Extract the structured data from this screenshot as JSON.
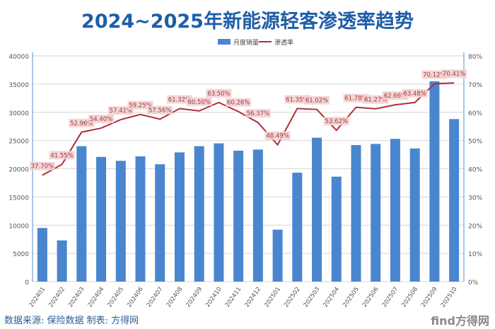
{
  "title": "2024~2025年新能源轻客渗透率趋势",
  "source": "数据来源: 保险数据 制表: 方得网",
  "logo": "find方得网",
  "chart_data": {
    "type": "bar+line",
    "title": "2024~2025年新能源轻客渗透率趋势",
    "categories": [
      "202401",
      "202402",
      "202403",
      "202404",
      "202405",
      "202406",
      "202407",
      "202408",
      "202409",
      "202410",
      "202411",
      "202412",
      "202501",
      "202502",
      "202503",
      "202504",
      "202505",
      "202506",
      "202507",
      "202508",
      "202509",
      "202510"
    ],
    "series": [
      {
        "name": "月度销量",
        "type": "bar",
        "axis": "left",
        "color": "#4a86cf",
        "values": [
          9500,
          7300,
          24000,
          22100,
          21400,
          22200,
          20800,
          22900,
          24000,
          24500,
          23200,
          23400,
          9200,
          19300,
          25500,
          18600,
          24200,
          24400,
          25300,
          23600,
          35500,
          28800
        ]
      },
      {
        "name": "渗透率",
        "type": "line",
        "axis": "right",
        "color": "#b0303a",
        "values": [
          37.7,
          41.55,
          52.96,
          54.4,
          57.41,
          59.25,
          57.56,
          61.32,
          60.5,
          63.5,
          60.26,
          56.37,
          48.49,
          61.35,
          61.02,
          53.62,
          61.78,
          61.27,
          62.66,
          63.48,
          70.12,
          70.41
        ],
        "labels": [
          "37.70%",
          "41.55%",
          "52.96%",
          "54.40%",
          "57.41%",
          "59.25%",
          "57.56%",
          "61.32%",
          "60.50%",
          "63.50%",
          "60.26%",
          "56.37%",
          "48.49%",
          "61.35%",
          "61.02%",
          "53.62%",
          "61.78%",
          "61.27%",
          "62.66%",
          "63.48%",
          "70.12%",
          "70.41%"
        ]
      }
    ],
    "ylim_left": [
      0,
      40000
    ],
    "yticks_left": [
      "0",
      "5000",
      "10000",
      "15000",
      "20000",
      "25000",
      "30000",
      "35000",
      "40000"
    ],
    "ylim_right": [
      0,
      80
    ],
    "yticks_right": [
      "0%",
      "10%",
      "20%",
      "30%",
      "40%",
      "50%",
      "60%",
      "70%",
      "80%"
    ],
    "grid": true,
    "legend": "top-center"
  }
}
